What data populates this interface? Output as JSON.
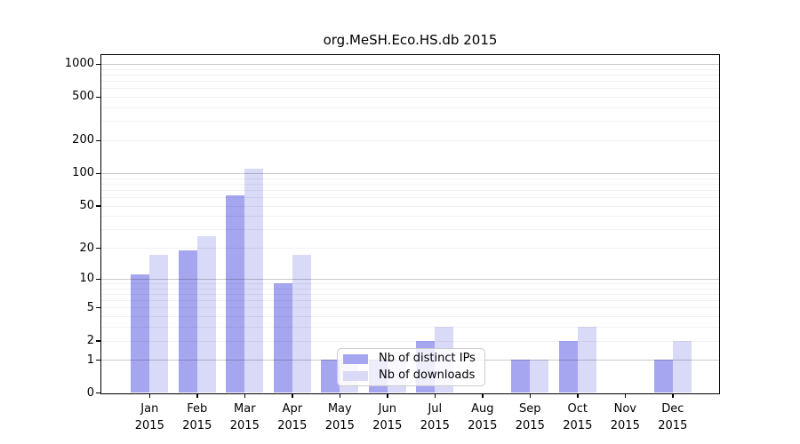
{
  "chart_data": {
    "type": "bar",
    "title": "org.MeSH.Eco.HS.db 2015",
    "categories": [
      "Jan 2015",
      "Feb 2015",
      "Mar 2015",
      "Apr 2015",
      "May 2015",
      "Jun 2015",
      "Jul 2015",
      "Aug 2015",
      "Sep 2015",
      "Oct 2015",
      "Nov 2015",
      "Dec 2015"
    ],
    "series": [
      {
        "name": "Nb of distinct IPs",
        "color": "#a6a6f0",
        "values": [
          11,
          19,
          62,
          9,
          1,
          1,
          2,
          0,
          1,
          2,
          0,
          1
        ]
      },
      {
        "name": "Nb of downloads",
        "color": "#d9d9f8",
        "values": [
          17,
          26,
          110,
          17,
          1,
          1,
          3,
          0,
          1,
          3,
          0,
          2
        ]
      }
    ],
    "yscale": "log1p",
    "ylim": [
      0,
      1264
    ],
    "yticks": [
      "0",
      "1",
      "2",
      "5",
      "10",
      "20",
      "50",
      "100",
      "200",
      "500",
      "1000"
    ],
    "grid": true,
    "legend_position": "lower center-left, overlapping plot",
    "colors": {
      "bar_dark": "#a6a6f0",
      "bar_light": "#d9d9f8",
      "grid_major": "#c9c9c9",
      "grid_minor": "#ededed",
      "frame": "#000000",
      "legend_border": "#cccccc"
    }
  }
}
